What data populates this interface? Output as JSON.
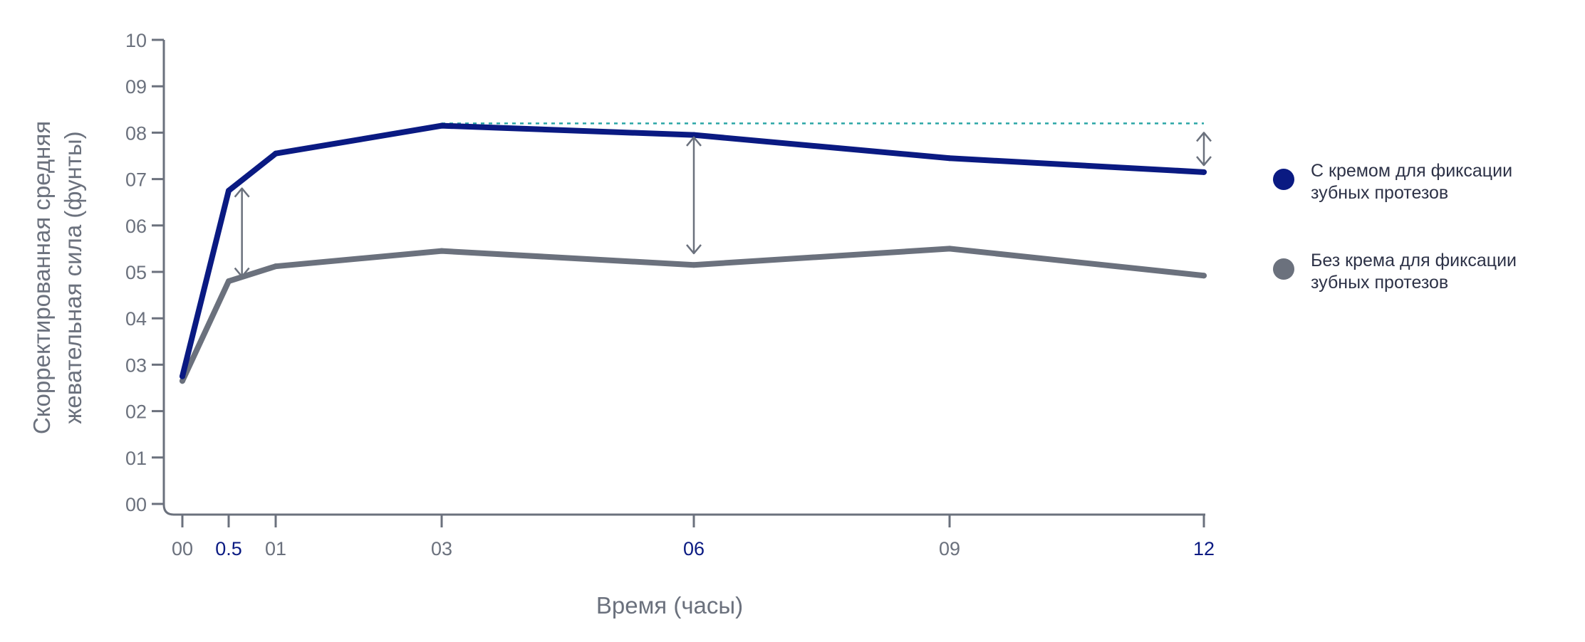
{
  "chart_data": {
    "type": "line",
    "xlabel": "Время (часы)",
    "ylabel_lines": [
      "Скорректированная средняя",
      "жевательная сила (фунты)"
    ],
    "x": [
      0,
      0.5,
      1,
      3,
      6,
      9,
      12
    ],
    "x_tick_labels": [
      "00",
      "0.5",
      "01",
      "03",
      "06",
      "09",
      "12"
    ],
    "x_tick_highlight": [
      false,
      true,
      false,
      false,
      true,
      false,
      true
    ],
    "y_ticks": [
      0,
      1,
      2,
      3,
      4,
      5,
      6,
      7,
      8,
      9,
      10
    ],
    "y_tick_labels": [
      "00",
      "01",
      "02",
      "03",
      "04",
      "05",
      "06",
      "07",
      "08",
      "09",
      "10"
    ],
    "ylim": [
      0,
      10
    ],
    "xlim": [
      0,
      12
    ],
    "grid": false,
    "legend_position": "right",
    "series": [
      {
        "name": "С кремом для фиксации зубных протезов",
        "legend_lines": [
          "С кремом для фиксации",
          "зубных протезов"
        ],
        "color": "#0a1a82",
        "values": [
          2.75,
          6.75,
          7.55,
          8.15,
          7.95,
          7.45,
          7.15
        ]
      },
      {
        "name": "Без крема для фиксации зубных протезов",
        "legend_lines": [
          "Без крема для фиксации",
          "зубных протезов"
        ],
        "color": "#6b717d",
        "values": [
          2.65,
          4.8,
          5.12,
          5.45,
          5.15,
          5.5,
          4.92
        ]
      }
    ],
    "reference_line": {
      "y": 8.2,
      "from_x": 3,
      "to_x": 12,
      "style": "dotted",
      "color": "#2ba6a6"
    },
    "difference_arrows": [
      {
        "x": 0.7,
        "y_from": 4.9,
        "y_to": 6.8
      },
      {
        "x": 6,
        "y_from": 5.4,
        "y_to": 7.9
      },
      {
        "x": 12,
        "y_from": 7.3,
        "y_to": 8.0
      }
    ]
  }
}
